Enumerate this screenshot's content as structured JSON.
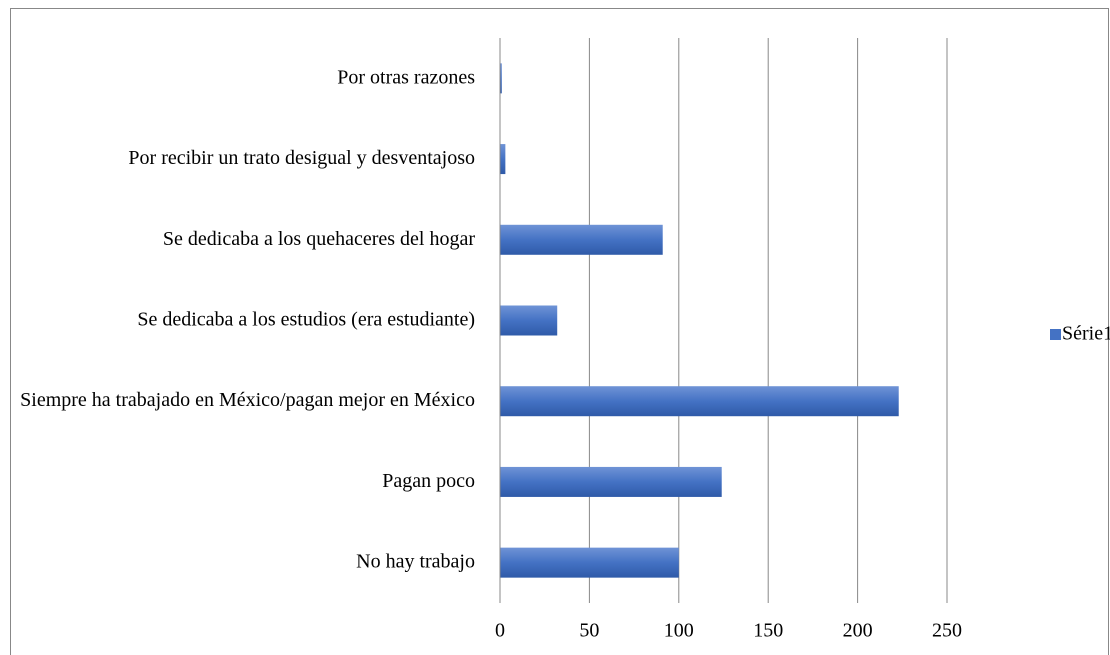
{
  "chart_data": {
    "type": "hbar",
    "categories": [
      "Por otras razones",
      "Por recibir un trato desigual y desventajoso",
      "Se dedicaba a los quehaceres del hogar",
      "Se dedicaba a los estudios (era estudiante)",
      "Siempre ha trabajado en México/pagan mejor en México",
      "Pagan poco",
      "No hay trabajo"
    ],
    "series": [
      {
        "name": "Série1",
        "color": "#4472c4",
        "values": [
          1,
          3,
          91,
          32,
          223,
          124,
          100
        ]
      }
    ],
    "xlim": [
      0,
      250
    ],
    "xticks": [
      0,
      50,
      100,
      150,
      200,
      250
    ],
    "grid": true,
    "legend": "right"
  }
}
